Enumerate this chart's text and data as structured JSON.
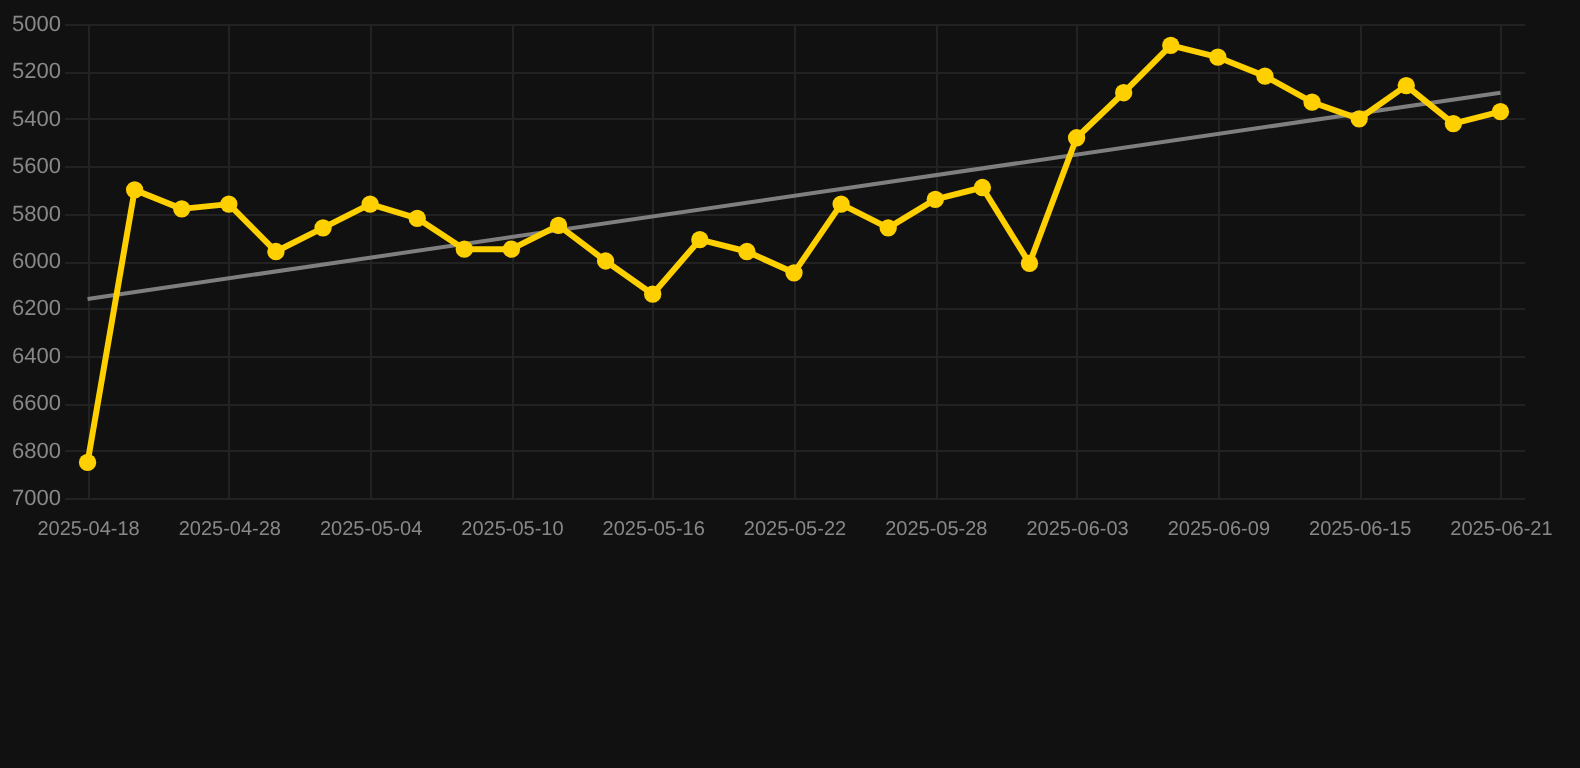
{
  "chart_data": {
    "type": "line",
    "categories": [
      "2025-04-18",
      null,
      null,
      "2025-04-28",
      null,
      null,
      "2025-05-04",
      null,
      null,
      "2025-05-10",
      null,
      null,
      "2025-05-16",
      null,
      null,
      "2025-05-22",
      null,
      null,
      "2025-05-28",
      null,
      null,
      "2025-06-03",
      null,
      null,
      "2025-06-09",
      null,
      null,
      "2025-06-15",
      null,
      null,
      "2025-06-21"
    ],
    "series": [
      {
        "color": "#ffd000",
        "marker": "circle",
        "values": [
          6850,
          5700,
          5780,
          5760,
          5960,
          5860,
          5760,
          5820,
          5950,
          5950,
          5850,
          6000,
          6140,
          5910,
          5960,
          6050,
          5760,
          5860,
          5740,
          5690,
          6010,
          5480,
          5290,
          5090,
          5140,
          5220,
          5330,
          5400,
          5260,
          5420,
          5370
        ]
      },
      {
        "color": "#7f7f7f",
        "marker": "none",
        "values": [
          6160,
          null,
          null,
          null,
          null,
          null,
          null,
          null,
          null,
          null,
          null,
          null,
          null,
          null,
          null,
          null,
          null,
          null,
          null,
          null,
          null,
          null,
          null,
          null,
          null,
          null,
          null,
          null,
          null,
          null,
          5290
        ]
      }
    ],
    "ylim": [
      7000,
      5000
    ],
    "yticks": [
      5000,
      5200,
      5400,
      5600,
      5800,
      6000,
      6200,
      6400,
      6600,
      6800,
      7000
    ],
    "grid": true,
    "line_style": "solid"
  }
}
